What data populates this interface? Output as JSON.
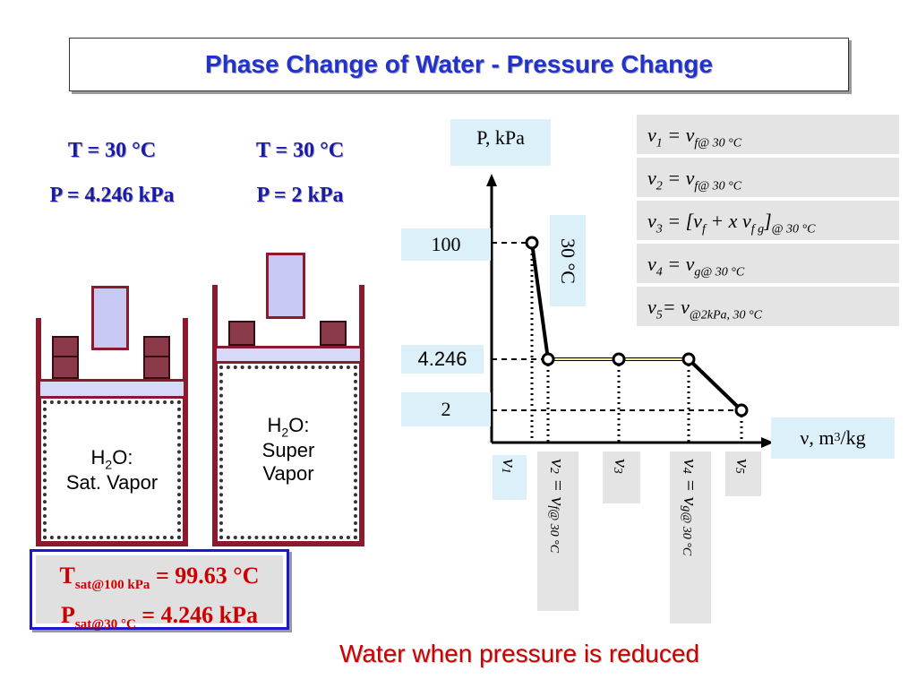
{
  "title": "Phase Change of Water - Pressure Change",
  "left_state": {
    "temperature": "T = 30 °C",
    "pressure": "P = 4.246 kPa",
    "content_line1": "H",
    "content_sub": "2",
    "content_line1b": "O:",
    "content_line2": "Sat. Vapor"
  },
  "right_state": {
    "temperature": "T = 30 °C",
    "pressure": "P = 2 kPa",
    "content_line1": "H",
    "content_sub": "2",
    "content_line1b": "O:",
    "content_line2": "Super",
    "content_line3": "Vapor"
  },
  "tsat": {
    "t_main": "T",
    "t_sub": "sat@100 kPa",
    "t_value": " = 99.63 °C",
    "p_main": "P",
    "p_sub": "sat@30 °C",
    "p_value": " = 4.246 kPa"
  },
  "chart": {
    "ylabel": "P, kPa",
    "xlabel_main": "ν, m",
    "xlabel_sup": "3",
    "xlabel_end": "/kg",
    "isotherm_label": "30 °C",
    "y_ticks": [
      "100",
      "4.246",
      "2"
    ]
  },
  "equations": {
    "eq1": {
      "lhs": "ν",
      "lhs_sub": "1",
      "rhs": " = ν",
      "rhs_sub": "f@ 30 °C"
    },
    "eq2": {
      "lhs": "ν",
      "lhs_sub": "2",
      "rhs": " = ν",
      "rhs_sub": "f@ 30 °C"
    },
    "eq3": {
      "lhs": "ν",
      "lhs_sub": "3",
      "rhs": " = [ν",
      "rhs_sub": "f",
      "mid": " + x ν",
      "mid_sub": "f g",
      "end": "]",
      "end_sub": "@ 30 °C"
    },
    "eq4": {
      "lhs": "ν",
      "lhs_sub": "4",
      "rhs": " = ν",
      "rhs_sub": "g@ 30 °C"
    },
    "eq5": {
      "lhs": "ν",
      "lhs_sub": "5",
      "rhs": "= ν",
      "rhs_sub": "@2kPa, 30 °C"
    }
  },
  "v_labels": {
    "v1": {
      "main": "ν",
      "sub": "1"
    },
    "v2": {
      "main": "ν",
      "sub": "2",
      "eq": " = ν",
      "eq_sub": "f@ 30 °C"
    },
    "v3": {
      "main": "ν",
      "sub": "3"
    },
    "v4": {
      "main": "ν",
      "sub": "4",
      "eq": " =  ν",
      "eq_sub": "g@ 30 °C"
    },
    "v5": {
      "main": "ν",
      "sub": "5"
    }
  },
  "caption": "Water when pressure is reduced",
  "chart_data": {
    "type": "line",
    "title": "",
    "xlabel": "ν, m3/kg",
    "ylabel": "P, kPa",
    "series": [
      {
        "name": "30 °C",
        "points": [
          "ν1@100",
          "ν2@4.246",
          "ν3@4.246",
          "ν4@4.246",
          "ν5@2"
        ]
      }
    ],
    "y_ticks": [
      100,
      4.246,
      2
    ],
    "x_ticks": [
      "ν1",
      "ν2",
      "ν3",
      "ν4",
      "ν5"
    ]
  }
}
